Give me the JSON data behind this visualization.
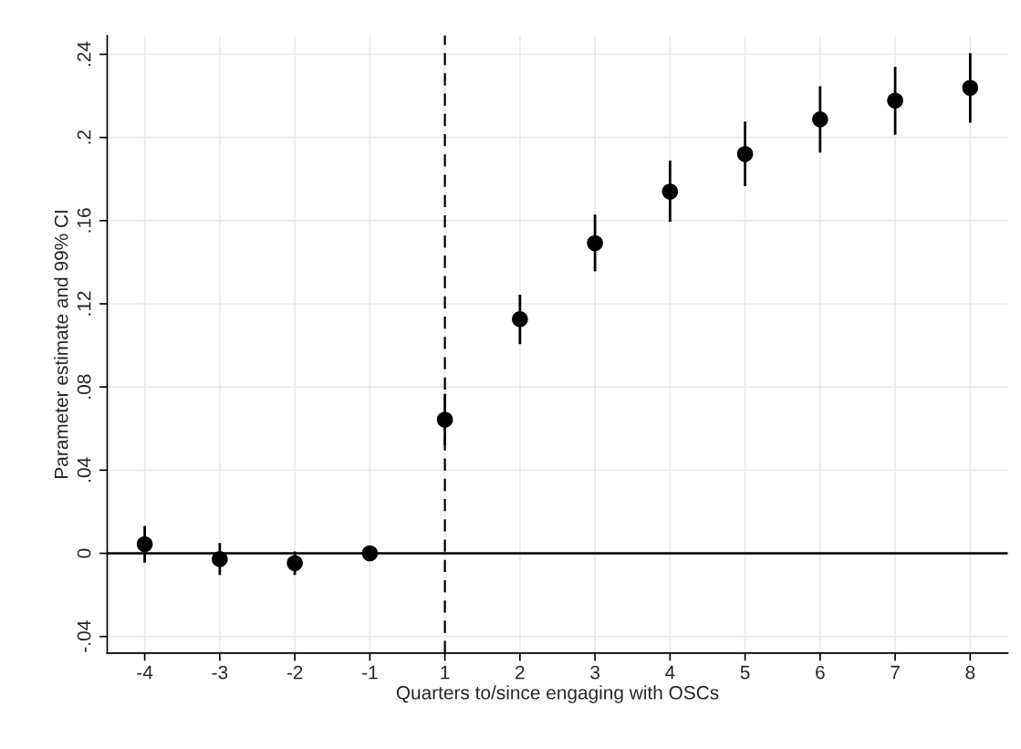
{
  "chart_data": {
    "type": "scatter",
    "xlabel": "Quarters to/since engaging with OSCs",
    "ylabel": "Parameter estimate and 99% CI",
    "categories": [
      "-4",
      "-3",
      "-2",
      "-1",
      "1",
      "2",
      "3",
      "4",
      "5",
      "6",
      "7",
      "8"
    ],
    "series": [
      {
        "color": "#000000",
        "values": [
          0.0044,
          -0.0028,
          -0.0047,
          0,
          0.0643,
          0.1126,
          0.1492,
          0.174,
          0.1921,
          0.2087,
          0.2177,
          0.2239
        ],
        "errors": [
          [
            -0.0045,
            0.0132
          ],
          [
            -0.0104,
            0.0049
          ],
          [
            -0.0104,
            0.0009
          ],
          null,
          [
            0.052,
            0.0767
          ],
          [
            0.1006,
            0.1244
          ],
          [
            0.1356,
            0.1629
          ],
          [
            0.1595,
            0.1889
          ],
          [
            0.1766,
            0.2076
          ],
          [
            0.1927,
            0.2247
          ],
          [
            0.2013,
            0.234
          ],
          [
            0.2071,
            0.2406
          ]
        ]
      }
    ],
    "ylim": [
      -0.048,
      0.249
    ],
    "yticks": [
      {
        "value": -0.04,
        "label": "-.04"
      },
      0,
      {
        "value": 0.04,
        "label": ".04"
      },
      {
        "value": 0.08,
        "label": ".08"
      },
      {
        "value": 0.12,
        "label": ".12"
      },
      {
        "value": 0.16,
        "label": ".16"
      },
      {
        "value": 0.2,
        "label": ".2"
      },
      {
        "value": 0.24,
        "label": ".24"
      }
    ],
    "ref_lines": [
      {
        "axis": "y",
        "value": 0,
        "color": "#000000",
        "line_style": "solid"
      },
      {
        "axis": "x",
        "value": "1",
        "color": "#000000",
        "line_style": "dashed"
      }
    ],
    "grid": true,
    "marker": "circle"
  }
}
